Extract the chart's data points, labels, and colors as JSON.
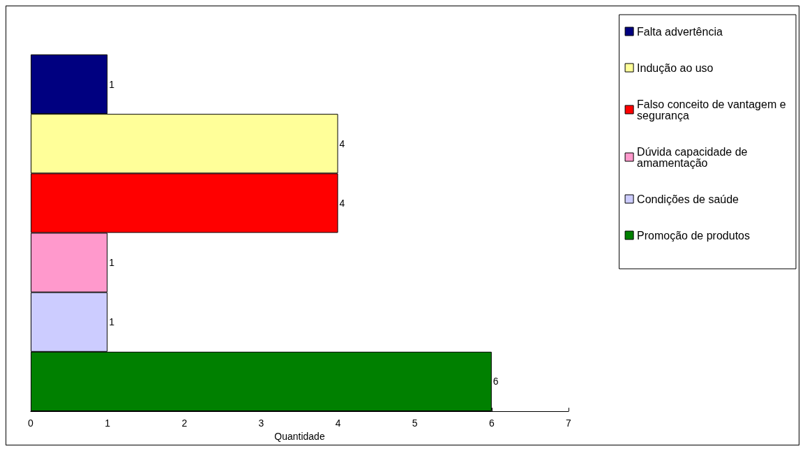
{
  "chart_data": {
    "type": "bar",
    "orientation": "horizontal",
    "categories": [
      null
    ],
    "series": [
      {
        "name": "Falta advertência",
        "color": "#000080",
        "values": [
          1
        ]
      },
      {
        "name": "Indução ao uso",
        "color": "#ffff99",
        "values": [
          4
        ]
      },
      {
        "name": "Falso conceito de vantagem e segurança",
        "color": "#ff0000",
        "values": [
          4
        ]
      },
      {
        "name": "Dúvida capacidade de amamentação",
        "color": "#ff99cc",
        "values": [
          1
        ]
      },
      {
        "name": "Condições de saúde",
        "color": "#ccccff",
        "values": [
          1
        ]
      },
      {
        "name": "Promoção de produtos",
        "color": "#008000",
        "values": [
          6
        ]
      }
    ],
    "xlabel": "Quantidade",
    "xlim": [
      0,
      7
    ],
    "xticks": [
      0,
      1,
      2,
      3,
      4,
      5,
      6,
      7
    ],
    "data_labels": true,
    "grid": false,
    "legend": "right"
  }
}
